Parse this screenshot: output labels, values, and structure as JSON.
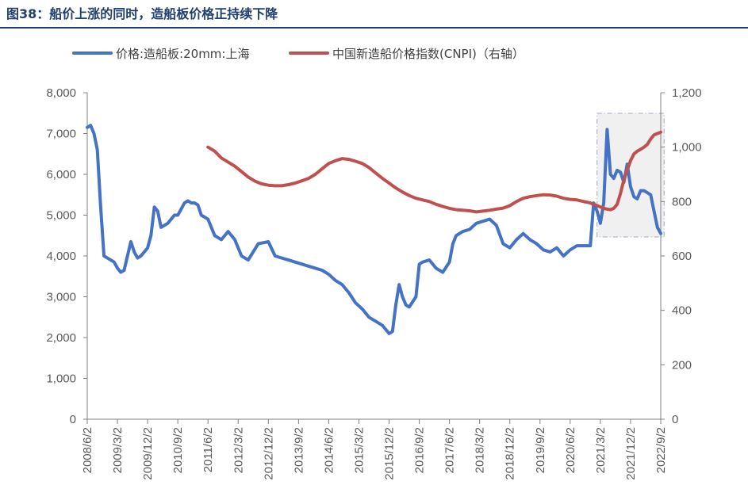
{
  "figure": {
    "title": "图38：船价上涨的同时，造船板价格正持续下降"
  },
  "colors": {
    "steel": "#4472c4",
    "cnpi": "#c0504d",
    "axis": "#808080",
    "title": "#1f3f6e"
  },
  "chart_data": {
    "type": "line",
    "title": "",
    "xlabel": "",
    "ylabel": "",
    "x_range": [
      "2008-06",
      "2022-09"
    ],
    "x_ticks": [
      "2008/6/2",
      "2009/3/2",
      "2009/12/2",
      "2010/9/2",
      "2011/6/2",
      "2012/3/2",
      "2012/12/2",
      "2013/9/2",
      "2014/6/2",
      "2015/3/2",
      "2015/12/2",
      "2016/9/2",
      "2017/6/2",
      "2018/3/2",
      "2018/12/2",
      "2019/9/2",
      "2020/6/2",
      "2021/3/2",
      "2021/12/2",
      "2022/9/2"
    ],
    "y_left": {
      "range": [
        0,
        8000
      ],
      "ticks": [
        "0",
        "1,000",
        "2,000",
        "3,000",
        "4,000",
        "5,000",
        "6,000",
        "7,000",
        "8,000"
      ]
    },
    "y_right": {
      "range": [
        0,
        1200
      ],
      "ticks": [
        "0",
        "200",
        "400",
        "600",
        "800",
        "1,000",
        "1,200"
      ]
    },
    "grid": false,
    "legend_position": "top",
    "series": [
      {
        "name": "价格:造船板:20mm:上海",
        "axis": "left",
        "x": [
          "2008-06",
          "2008-07",
          "2008-08",
          "2008-09",
          "2008-10",
          "2008-11",
          "2008-12",
          "2009-01",
          "2009-02",
          "2009-03",
          "2009-04",
          "2009-05",
          "2009-06",
          "2009-07",
          "2009-08",
          "2009-09",
          "2009-10",
          "2009-11",
          "2009-12",
          "2010-01",
          "2010-02",
          "2010-03",
          "2010-04",
          "2010-05",
          "2010-06",
          "2010-07",
          "2010-08",
          "2010-09",
          "2010-10",
          "2010-11",
          "2010-12",
          "2011-01",
          "2011-02",
          "2011-03",
          "2011-04",
          "2011-06",
          "2011-08",
          "2011-10",
          "2011-12",
          "2012-02",
          "2012-04",
          "2012-06",
          "2012-09",
          "2012-12",
          "2013-02",
          "2013-04",
          "2013-06",
          "2013-08",
          "2013-10",
          "2013-12",
          "2014-02",
          "2014-04",
          "2014-06",
          "2014-08",
          "2014-10",
          "2014-12",
          "2015-02",
          "2015-04",
          "2015-06",
          "2015-08",
          "2015-10",
          "2015-12",
          "2016-01",
          "2016-02",
          "2016-03",
          "2016-04",
          "2016-05",
          "2016-06",
          "2016-08",
          "2016-09",
          "2016-10",
          "2016-12",
          "2017-02",
          "2017-04",
          "2017-06",
          "2017-07",
          "2017-08",
          "2017-10",
          "2017-12",
          "2018-02",
          "2018-04",
          "2018-06",
          "2018-08",
          "2018-10",
          "2018-12",
          "2019-02",
          "2019-04",
          "2019-06",
          "2019-08",
          "2019-10",
          "2019-12",
          "2020-02",
          "2020-04",
          "2020-06",
          "2020-08",
          "2020-10",
          "2020-12",
          "2021-01",
          "2021-02",
          "2021-03",
          "2021-04",
          "2021-05",
          "2021-06",
          "2021-07",
          "2021-08",
          "2021-09",
          "2021-10",
          "2021-11",
          "2021-12",
          "2022-01",
          "2022-02",
          "2022-03",
          "2022-04",
          "2022-05",
          "2022-06",
          "2022-07",
          "2022-08",
          "2022-09"
        ],
        "values": [
          7150,
          7200,
          7000,
          6600,
          5200,
          4000,
          3950,
          3900,
          3850,
          3700,
          3600,
          3650,
          4000,
          4350,
          4100,
          3950,
          4000,
          4100,
          4200,
          4500,
          5200,
          5100,
          4700,
          4750,
          4800,
          4900,
          5000,
          5000,
          5150,
          5300,
          5350,
          5300,
          5300,
          5250,
          5000,
          4900,
          4500,
          4400,
          4600,
          4400,
          4000,
          3900,
          4300,
          4350,
          4000,
          3950,
          3900,
          3850,
          3800,
          3750,
          3700,
          3650,
          3550,
          3400,
          3300,
          3100,
          2850,
          2700,
          2500,
          2400,
          2300,
          2100,
          2150,
          2800,
          3300,
          3000,
          2800,
          2750,
          3000,
          3800,
          3850,
          3900,
          3700,
          3600,
          3850,
          4300,
          4500,
          4600,
          4650,
          4800,
          4850,
          4900,
          4750,
          4300,
          4200,
          4400,
          4550,
          4400,
          4300,
          4150,
          4100,
          4200,
          4000,
          4150,
          4250,
          4250,
          4250,
          5300,
          5100,
          4800,
          5300,
          7100,
          6000,
          5900,
          6100,
          6050,
          5800,
          6250,
          5700,
          5450,
          5400,
          5600,
          5600,
          5550,
          5500,
          5100,
          4700,
          4550
        ]
      },
      {
        "name": "中国新造船价格指数(CNPI)（右轴）",
        "axis": "right",
        "x": [
          "2011-06",
          "2011-08",
          "2011-10",
          "2011-12",
          "2012-02",
          "2012-04",
          "2012-06",
          "2012-08",
          "2012-10",
          "2012-12",
          "2013-02",
          "2013-04",
          "2013-06",
          "2013-08",
          "2013-10",
          "2013-12",
          "2014-02",
          "2014-04",
          "2014-06",
          "2014-08",
          "2014-10",
          "2014-12",
          "2015-02",
          "2015-04",
          "2015-06",
          "2015-08",
          "2015-10",
          "2015-12",
          "2016-02",
          "2016-04",
          "2016-06",
          "2016-08",
          "2016-10",
          "2016-12",
          "2017-02",
          "2017-04",
          "2017-06",
          "2017-08",
          "2017-10",
          "2017-12",
          "2018-02",
          "2018-04",
          "2018-06",
          "2018-08",
          "2018-10",
          "2018-12",
          "2019-02",
          "2019-04",
          "2019-06",
          "2019-08",
          "2019-10",
          "2019-12",
          "2020-02",
          "2020-04",
          "2020-06",
          "2020-08",
          "2020-10",
          "2020-12",
          "2021-01",
          "2021-02",
          "2021-03",
          "2021-04",
          "2021-05",
          "2021-06",
          "2021-07",
          "2021-08",
          "2021-09",
          "2021-10",
          "2021-11",
          "2021-12",
          "2022-01",
          "2022-02",
          "2022-03",
          "2022-04",
          "2022-05",
          "2022-06",
          "2022-07",
          "2022-08",
          "2022-09"
        ],
        "values": [
          1000,
          985,
          960,
          945,
          930,
          910,
          890,
          875,
          865,
          860,
          858,
          858,
          862,
          868,
          876,
          885,
          900,
          920,
          940,
          950,
          958,
          955,
          948,
          940,
          925,
          905,
          885,
          868,
          850,
          835,
          822,
          812,
          806,
          800,
          790,
          782,
          775,
          770,
          768,
          766,
          762,
          765,
          768,
          772,
          776,
          785,
          800,
          812,
          818,
          822,
          825,
          824,
          820,
          812,
          808,
          806,
          800,
          795,
          790,
          785,
          780,
          775,
          772,
          770,
          775,
          790,
          830,
          880,
          915,
          950,
          975,
          985,
          992,
          1000,
          1010,
          1030,
          1045,
          1050,
          1055
        ]
      }
    ]
  }
}
